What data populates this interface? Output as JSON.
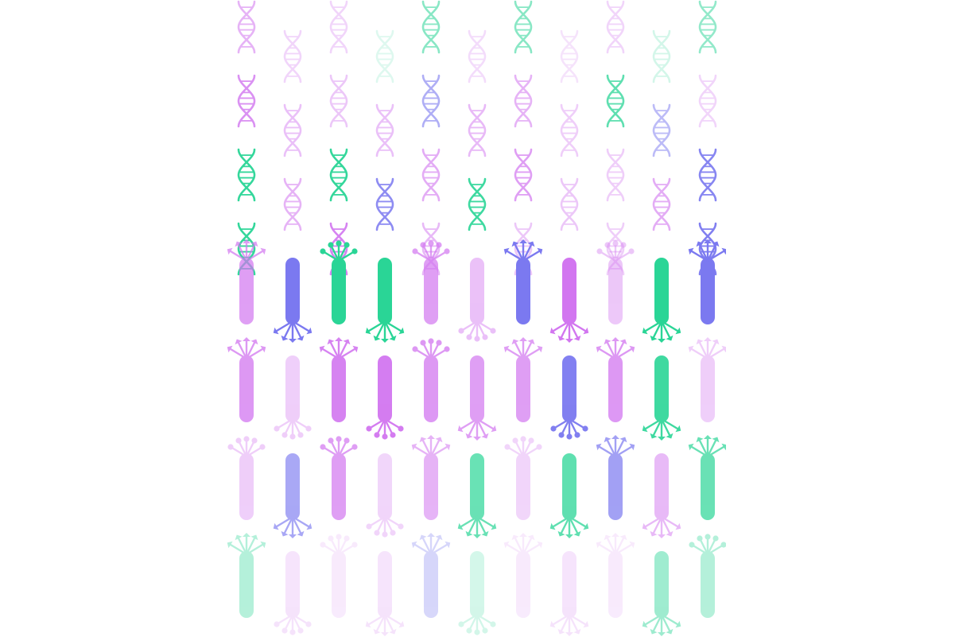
{
  "palette": {
    "purple": "#d276f0",
    "indigo": "#7b79f0",
    "green": "#2ad596",
    "background": "#ffffff"
  },
  "helix_rows": [
    [
      "#d276f0",
      "#d276f0",
      "#d276f0",
      "#2ad596",
      "#2ad596",
      "#d276f0",
      "#2ad596",
      "#d276f0",
      "#d276f0",
      "#2ad596",
      "#2ad596"
    ],
    [
      "#d276f0",
      "#d276f0",
      "#d276f0",
      "#d276f0",
      "#7b79f0",
      "#d276f0",
      "#d276f0",
      "#d276f0",
      "#2ad596",
      "#7b79f0",
      "#d276f0"
    ],
    [
      "#2ad596",
      "#d276f0",
      "#2ad596",
      "#7b79f0",
      "#d276f0",
      "#2ad596",
      "#d276f0",
      "#d276f0",
      "#d276f0",
      "#d276f0",
      "#7b79f0"
    ],
    [
      "#2ad596",
      "#2ad596",
      "#d276f0",
      "#d276f0",
      "#d276f0",
      "#d276f0",
      "#d276f0",
      "#d276f0",
      "#d276f0",
      "#7b79f0",
      "#7b79f0"
    ]
  ],
  "cell_rows": [
    [
      "#d276f0",
      "#7b79f0",
      "#2ad596",
      "#2ad596",
      "#d276f0",
      "#d276f0",
      "#7b79f0",
      "#d276f0",
      "#d276f0",
      "#2ad596",
      "#7b79f0"
    ],
    [
      "#d276f0",
      "#d276f0",
      "#d276f0",
      "#d276f0",
      "#d276f0",
      "#d276f0",
      "#d276f0",
      "#7b79f0",
      "#d276f0",
      "#2ad596",
      "#d276f0"
    ],
    [
      "#d276f0",
      "#7b79f0",
      "#d276f0",
      "#d276f0",
      "#d276f0",
      "#2ad596",
      "#d276f0",
      "#2ad596",
      "#7b79f0",
      "#d276f0",
      "#2ad596"
    ],
    [
      "#2ad596",
      "#d276f0",
      "#d276f0",
      "#d276f0",
      "#7b79f0",
      "#2ad596",
      "#d276f0",
      "#d276f0",
      "#d276f0",
      "#2ad596",
      "#2ad596"
    ]
  ],
  "icons": {
    "helix": "dna-helix-icon",
    "cell": "neuron-cell-icon"
  }
}
